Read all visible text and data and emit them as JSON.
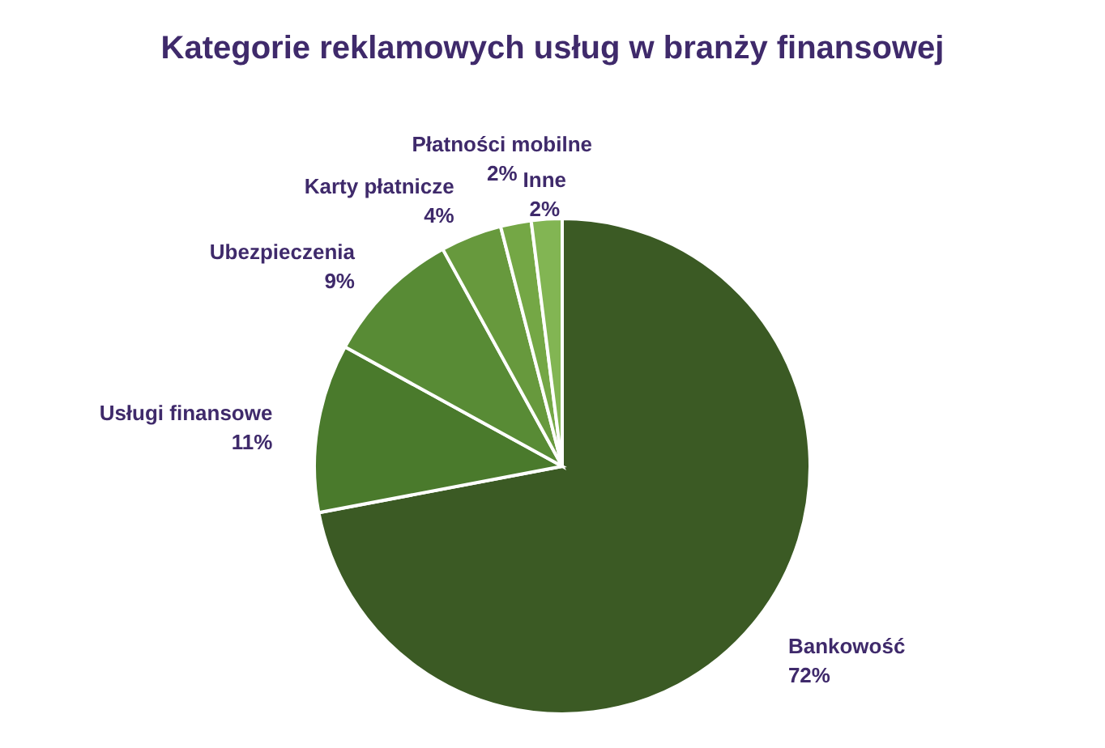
{
  "chart_data": {
    "type": "pie",
    "title": "Kategorie reklamowych usług w branży finansowej",
    "categories": [
      "Bankowość",
      "Usługi finansowe",
      "Ubezpieczenia",
      "Karty płatnicze",
      "Płatności mobilne",
      "Inne"
    ],
    "values": [
      72,
      11,
      9,
      4,
      2,
      2
    ],
    "colors": [
      "#3b5a24",
      "#4a7a2c",
      "#588b35",
      "#67993d",
      "#74a745",
      "#82b553"
    ],
    "value_labels": [
      "72%",
      "11%",
      "9%",
      "4%",
      "2%",
      "2%"
    ]
  }
}
